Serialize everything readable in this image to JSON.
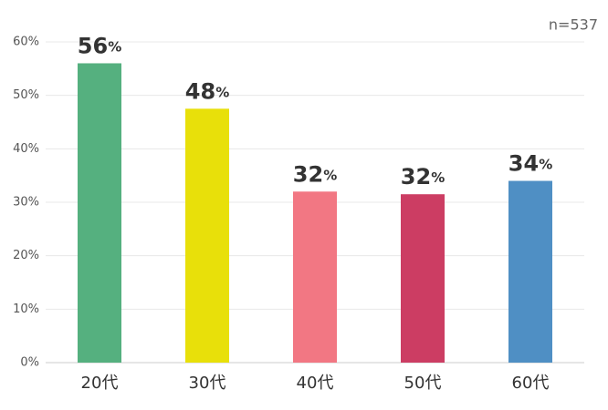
{
  "chart_data": {
    "type": "bar",
    "annotation": "n=537",
    "categories": [
      "20代",
      "30代",
      "40代",
      "50代",
      "60代"
    ],
    "values": [
      56,
      47.5,
      32,
      31.5,
      34
    ],
    "value_labels": [
      "56%",
      "48%",
      "32%",
      "32%",
      "34%"
    ],
    "colors": [
      "#55b07f",
      "#e8e00a",
      "#f27783",
      "#cc3d63",
      "#4f8fc4"
    ],
    "ylim": [
      0,
      60
    ],
    "yticks": [
      {
        "value": 0,
        "label": "0%"
      },
      {
        "value": 10,
        "label": "10%"
      },
      {
        "value": 20,
        "label": "20%"
      },
      {
        "value": 30,
        "label": "30%"
      },
      {
        "value": 40,
        "label": "40%"
      },
      {
        "value": 50,
        "label": "50%"
      },
      {
        "value": 60,
        "label": "60%"
      }
    ],
    "grid": true
  }
}
